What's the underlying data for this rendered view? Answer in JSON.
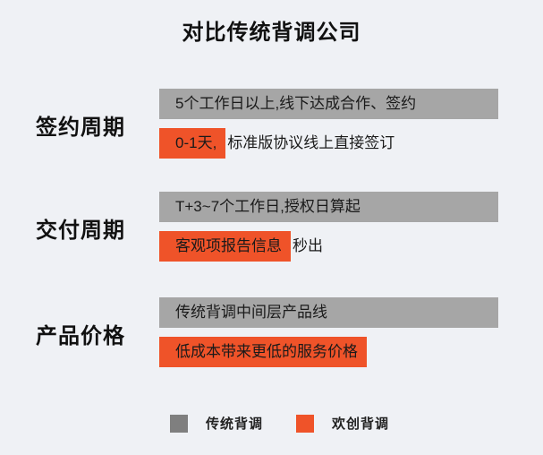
{
  "title": "对比传统背调公司",
  "colors": {
    "bg": "#eff1f5",
    "bar-gray": "#a6a6a6",
    "bar-orange": "#ef5329",
    "legend-gray": "#7f7f7f",
    "text-dark": "#1a1a1a"
  },
  "rows": [
    {
      "label": "签约周期",
      "traditional": "5个工作日以上,线下达成合作、签约",
      "huanchuang_highlight": "0-1天,",
      "huanchuang_rest": "标准版协议线上直接签订"
    },
    {
      "label": "交付周期",
      "traditional": "T+3~7个工作日,授权日算起",
      "huanchuang_highlight": "客观项报告信息",
      "huanchuang_rest": "秒出"
    },
    {
      "label": "产品价格",
      "traditional": "传统背调中间层产品线",
      "huanchuang_highlight": "低成本带来更低的服务价格",
      "huanchuang_rest": ""
    }
  ],
  "legend": [
    {
      "label": "传统背调",
      "color": "#7f7f7f"
    },
    {
      "label": "欢创背调",
      "color": "#ef5329"
    }
  ]
}
